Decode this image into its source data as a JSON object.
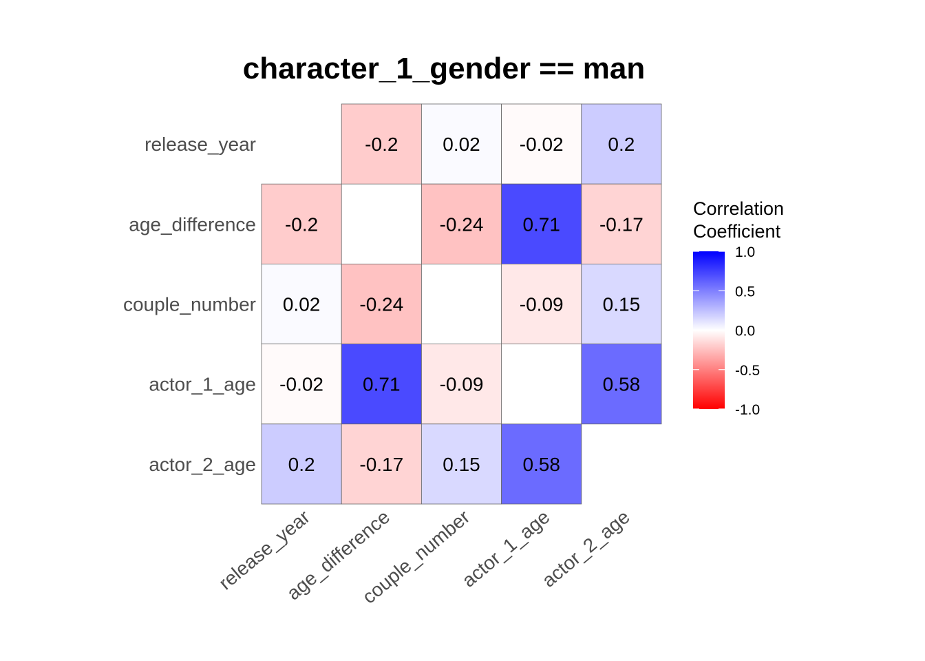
{
  "chart_data": {
    "type": "heatmap",
    "title": "character_1_gender == man",
    "variables": [
      "release_year",
      "age_difference",
      "couple_number",
      "actor_1_age",
      "actor_2_age"
    ],
    "matrix": [
      [
        null,
        -0.2,
        0.02,
        -0.02,
        0.2
      ],
      [
        -0.2,
        null,
        -0.24,
        0.71,
        -0.17
      ],
      [
        0.02,
        -0.24,
        null,
        -0.09,
        0.15
      ],
      [
        -0.02,
        0.71,
        -0.09,
        null,
        0.58
      ],
      [
        0.2,
        -0.17,
        0.15,
        0.58,
        null
      ]
    ],
    "cell_labels": [
      [
        "",
        "-0.2",
        "0.02",
        "-0.02",
        "0.2"
      ],
      [
        "-0.2",
        "",
        "-0.24",
        "0.71",
        "-0.17"
      ],
      [
        "0.02",
        "-0.24",
        "",
        "-0.09",
        "0.15"
      ],
      [
        "-0.02",
        "0.71",
        "-0.09",
        "",
        "0.58"
      ],
      [
        "0.2",
        "-0.17",
        "0.15",
        "0.58",
        ""
      ]
    ],
    "legend": {
      "title_lines": [
        "Correlation",
        "Coefficient"
      ],
      "range": [
        -1,
        1
      ],
      "ticks": [
        1.0,
        0.5,
        0.0,
        -0.5,
        -1.0
      ],
      "tick_labels": [
        "1.0",
        "0.5",
        "0.0",
        "-0.5",
        "-1.0"
      ],
      "placement": "right"
    },
    "colors": {
      "low": "#ff0000",
      "mid": "#ffffff",
      "high": "#0000ff",
      "cell_border": "#666666"
    }
  }
}
